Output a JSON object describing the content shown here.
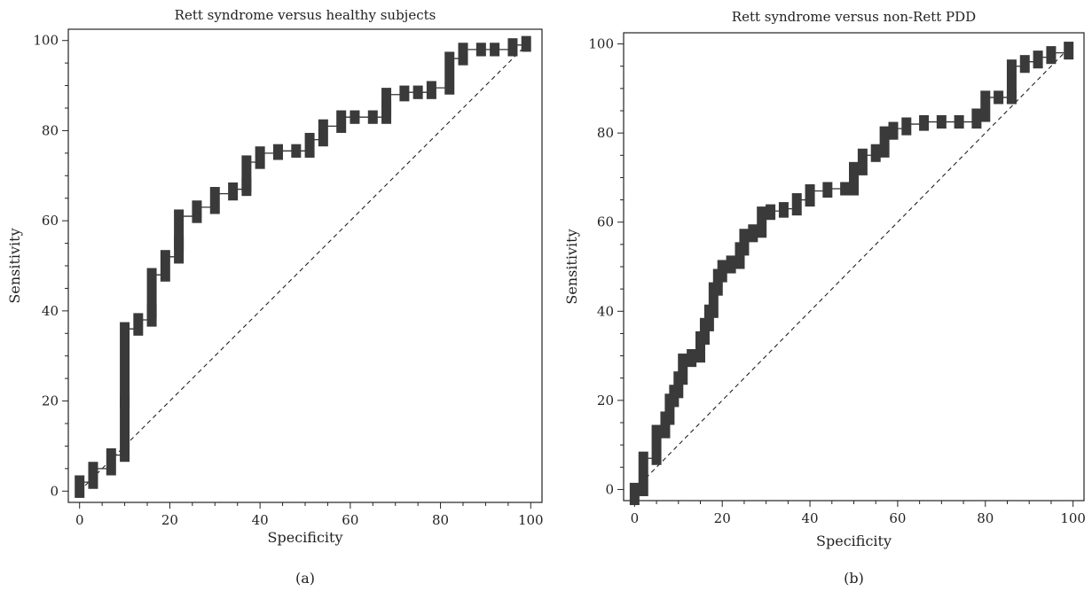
{
  "chart_data": [
    {
      "type": "line",
      "panel_label": "(a)",
      "title": "Rett syndrome versus healthy subjects",
      "xlabel": "Specificity",
      "ylabel": "Sensitivity",
      "xlim": [
        -2.5,
        102.5
      ],
      "ylim": [
        -2.5,
        102.5
      ],
      "xticks": [
        0,
        20,
        40,
        60,
        80,
        100
      ],
      "yticks": [
        0,
        20,
        40,
        60,
        80,
        100
      ],
      "grid": false,
      "reference_line": {
        "from": [
          0,
          0
        ],
        "to": [
          100,
          100
        ],
        "style": "dashed"
      },
      "series": [
        {
          "style": "step-with-confidence-bars",
          "points": [
            [
              0,
              2
            ],
            [
              3,
              5
            ],
            [
              7,
              8
            ],
            [
              10,
              20
            ],
            [
              10,
              36
            ],
            [
              13,
              38
            ],
            [
              16,
              40
            ],
            [
              16,
              48
            ],
            [
              19,
              52
            ],
            [
              22,
              55
            ],
            [
              22,
              61
            ],
            [
              26,
              63
            ],
            [
              30,
              66
            ],
            [
              34,
              67
            ],
            [
              37,
              68
            ],
            [
              37,
              73
            ],
            [
              40,
              75
            ],
            [
              44,
              75.5
            ],
            [
              48,
              75.5
            ],
            [
              51,
              78
            ],
            [
              54,
              81
            ],
            [
              58,
              83
            ],
            [
              61,
              83
            ],
            [
              65,
              83
            ],
            [
              68,
              85
            ],
            [
              68,
              88
            ],
            [
              72,
              88.5
            ],
            [
              75,
              88.5
            ],
            [
              78,
              89.5
            ],
            [
              82,
              96
            ],
            [
              85,
              98
            ],
            [
              89,
              98
            ],
            [
              92,
              98
            ],
            [
              96,
              99
            ],
            [
              99,
              99.5
            ]
          ]
        }
      ]
    },
    {
      "type": "line",
      "panel_label": "(b)",
      "title": "Rett syndrome versus non-Rett PDD",
      "xlabel": "Specificity",
      "ylabel": "Sensitivity",
      "xlim": [
        -2.5,
        102.5
      ],
      "ylim": [
        -2.5,
        102.5
      ],
      "xticks": [
        0,
        20,
        40,
        60,
        80,
        100
      ],
      "yticks": [
        0,
        20,
        40,
        60,
        80,
        100
      ],
      "grid": false,
      "reference_line": {
        "from": [
          0,
          0
        ],
        "to": [
          100,
          100
        ],
        "style": "dashed"
      },
      "series": [
        {
          "style": "step-with-confidence-bars",
          "points": [
            [
              0,
              0
            ],
            [
              2,
              7
            ],
            [
              5,
              13
            ],
            [
              7,
              16
            ],
            [
              8,
              20
            ],
            [
              9,
              22
            ],
            [
              10,
              25
            ],
            [
              11,
              29
            ],
            [
              13,
              30
            ],
            [
              15,
              30
            ],
            [
              15,
              34
            ],
            [
              16,
              37
            ],
            [
              17,
              40
            ],
            [
              18,
              45
            ],
            [
              19,
              48
            ],
            [
              20,
              50
            ],
            [
              22,
              51
            ],
            [
              24,
              54
            ],
            [
              25,
              57
            ],
            [
              27,
              58
            ],
            [
              29,
              62
            ],
            [
              31,
              62.5
            ],
            [
              34,
              63
            ],
            [
              37,
              65
            ],
            [
              40,
              67
            ],
            [
              44,
              67.5
            ],
            [
              48,
              67.5
            ],
            [
              50,
              72
            ],
            [
              52,
              75
            ],
            [
              55,
              76
            ],
            [
              57,
              80
            ],
            [
              59,
              81
            ],
            [
              62,
              82
            ],
            [
              66,
              82.5
            ],
            [
              70,
              82.5
            ],
            [
              74,
              82.5
            ],
            [
              78,
              84
            ],
            [
              80,
              88
            ],
            [
              83,
              88
            ],
            [
              86,
              88
            ],
            [
              86,
              95
            ],
            [
              89,
              96
            ],
            [
              92,
              97
            ],
            [
              95,
              98
            ],
            [
              99,
              99
            ]
          ]
        }
      ]
    }
  ]
}
